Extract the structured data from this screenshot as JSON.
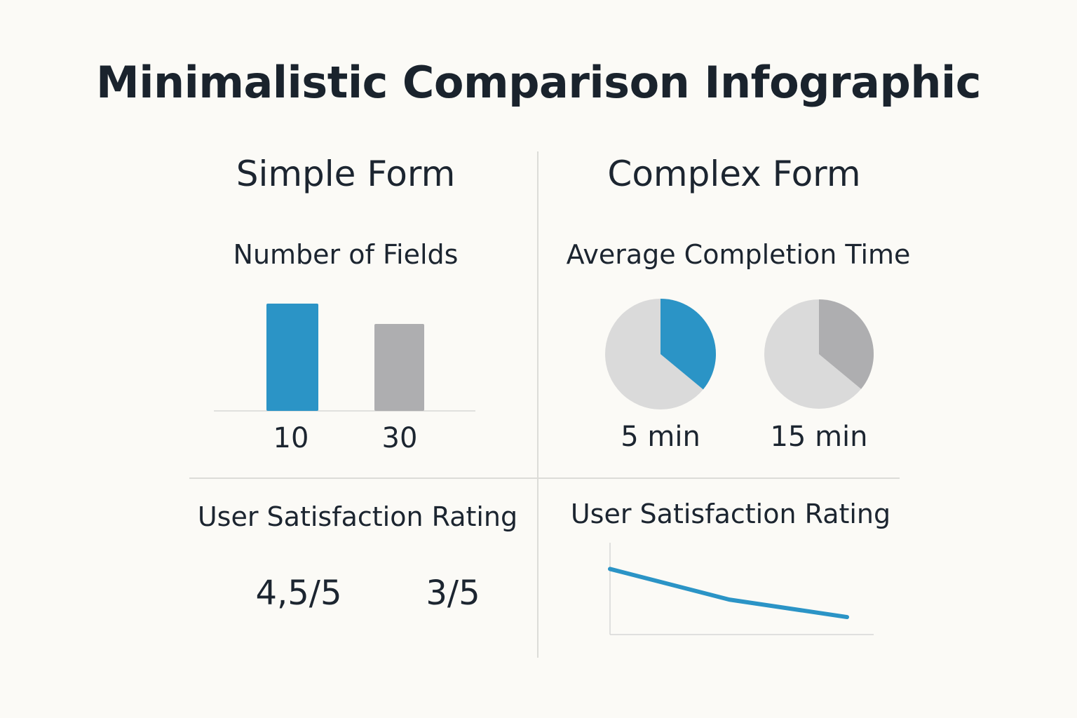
{
  "title": "Minimalistic Comparison Infographic",
  "columns": {
    "simple": {
      "title": "Simple Form"
    },
    "complex": {
      "title": "Complex Form"
    }
  },
  "colors": {
    "blue": "#2b94c6",
    "gray": "#aeaeb0",
    "light_gray": "#dadada",
    "axis": "#d8d8d6"
  },
  "chart_data": [
    {
      "type": "bar",
      "title": "Number of Fields",
      "categories": [
        "10",
        "30"
      ],
      "values": [
        10,
        30
      ],
      "bar_colors": [
        "#2b94c6",
        "#aeaeb0"
      ],
      "value_labels": [
        "10",
        "30"
      ]
    },
    {
      "type": "pie",
      "title": "Average Completion Time",
      "pies": [
        {
          "label": "5 min",
          "slice_fraction": 0.36,
          "slice_color": "#2b94c6",
          "base_color": "#dadada"
        },
        {
          "label": "15 min",
          "slice_fraction": 0.36,
          "slice_color": "#aeaeb0",
          "base_color": "#dadada"
        }
      ]
    },
    {
      "type": "table",
      "title": "User Satisfaction Rating",
      "values": [
        "4,5/5",
        "3/5"
      ]
    },
    {
      "type": "line",
      "title": "User Satisfaction Rating",
      "x": [
        0,
        1,
        2
      ],
      "y": [
        4.0,
        3.3,
        2.9
      ],
      "ylim": [
        2.5,
        4.6
      ],
      "line_color": "#2b94c6"
    }
  ]
}
